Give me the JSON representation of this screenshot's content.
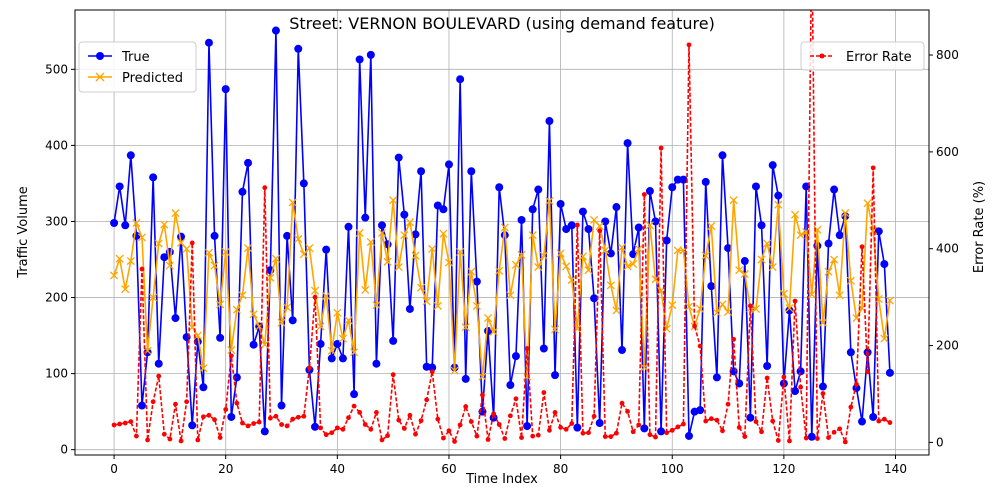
{
  "chart_data": {
    "type": "line",
    "title": "Street: VERNON BOULEVARD (using demand feature)",
    "xlabel": "Time Index",
    "ylabel_left": "Traffic Volume",
    "ylabel_right": "Error Rate (%)",
    "xlim": [
      -7,
      146
    ],
    "ylim_left": [
      -7,
      578
    ],
    "ylim_right": [
      -26,
      893
    ],
    "x_ticks": [
      0,
      20,
      40,
      60,
      80,
      100,
      120,
      140
    ],
    "y_ticks_left": [
      0,
      100,
      200,
      300,
      400,
      500
    ],
    "y_ticks_right": [
      0,
      200,
      400,
      600,
      800
    ],
    "grid": true,
    "legend_left": "upper left",
    "legend_right": "upper right",
    "colors": {
      "true": "#0000ff",
      "predicted": "#ffa500",
      "error": "#ff0000"
    },
    "series": [
      {
        "name": "True",
        "axis": "left",
        "marker": "circle",
        "values": [
          298,
          346,
          295,
          387,
          281,
          58,
          128,
          358,
          113,
          253,
          260,
          173,
          280,
          148,
          32,
          142,
          82,
          535,
          281,
          147,
          474,
          43,
          95,
          339,
          377,
          138,
          162,
          24,
          236,
          551,
          58,
          281,
          170,
          527,
          350,
          105,
          30,
          139,
          263,
          120,
          139,
          120,
          293,
          73,
          513,
          305,
          519,
          113,
          295,
          270,
          143,
          384,
          309,
          185,
          283,
          366,
          109,
          108,
          321,
          316,
          375,
          108,
          487,
          93,
          366,
          221,
          50,
          156,
          42,
          345,
          282,
          85,
          123,
          302,
          31,
          316,
          342,
          133,
          432,
          98,
          323,
          290,
          295,
          29,
          313,
          290,
          199,
          35,
          300,
          258,
          319,
          131,
          403,
          257,
          292,
          28,
          340,
          300,
          24,
          275,
          345,
          355,
          355,
          18,
          50,
          52,
          352,
          215,
          95,
          387,
          265,
          103,
          87,
          248,
          42,
          346,
          295,
          110,
          374,
          334,
          87,
          183,
          77,
          103,
          346,
          17,
          268,
          83,
          271,
          342,
          282,
          307,
          128,
          81,
          37,
          128,
          43,
          287,
          244,
          101
        ]
      },
      {
        "name": "Predicted",
        "axis": "left",
        "marker": "x",
        "values": [
          229,
          251,
          211,
          248,
          298,
          279,
          130,
          200,
          271,
          296,
          242,
          311,
          272,
          264,
          161,
          150,
          107,
          259,
          242,
          191,
          260,
          131,
          184,
          203,
          265,
          178,
          162,
          138,
          226,
          251,
          167,
          187,
          325,
          277,
          257,
          265,
          209,
          162,
          202,
          130,
          180,
          146,
          170,
          128,
          285,
          210,
          273,
          190,
          285,
          247,
          328,
          240,
          282,
          299,
          255,
          213,
          195,
          264,
          189,
          284,
          246,
          104,
          260,
          161,
          234,
          189,
          96,
          173,
          155,
          235,
          292,
          203,
          243,
          256,
          96,
          282,
          240,
          255,
          327,
          158,
          258,
          241,
          223,
          159,
          254,
          236,
          302,
          294,
          262,
          216,
          183,
          266,
          241,
          244,
          264,
          108,
          295,
          224,
          209,
          159,
          190,
          262,
          262,
          188,
          162,
          185,
          255,
          294,
          180,
          191,
          181,
          328,
          236,
          231,
          186,
          185,
          250,
          271,
          240,
          322,
          205,
          186,
          309,
          282,
          286,
          204,
          289,
          167,
          234,
          250,
          203,
          311,
          222,
          173,
          186,
          324,
          288,
          198,
          146,
          196
        ]
      },
      {
        "name": "Error Rate",
        "axis": "right",
        "marker": "dot",
        "style": "dashed",
        "values": [
          36,
          38,
          40,
          43,
          13,
          358,
          5,
          84,
          137,
          17,
          7,
          79,
          3,
          84,
          412,
          5,
          53,
          56,
          47,
          10,
          68,
          179,
          81,
          40,
          34,
          39,
          42,
          526,
          50,
          54,
          37,
          34,
          48,
          52,
          54,
          154,
          300,
          30,
          16,
          20,
          30,
          27,
          51,
          75,
          62,
          37,
          27,
          62,
          5,
          14,
          140,
          46,
          29,
          56,
          17,
          45,
          88,
          146,
          48,
          9,
          24,
          2,
          36,
          74,
          43,
          13,
          98,
          6,
          59,
          37,
          8,
          55,
          90,
          10,
          194,
          13,
          15,
          103,
          25,
          62,
          31,
          27,
          39,
          449,
          19,
          20,
          54,
          437,
          12,
          12,
          19,
          81,
          64,
          22,
          36,
          512,
          16,
          11,
          608,
          20,
          25,
          32,
          38,
          821,
          240,
          199,
          44,
          49,
          46,
          24,
          79,
          213,
          31,
          12,
          282,
          43,
          22,
          133,
          44,
          4,
          135,
          3,
          292,
          114,
          9,
          1044,
          8,
          101,
          10,
          21,
          28,
          1,
          73,
          120,
          404,
          146,
          567,
          44,
          48,
          41
        ]
      }
    ]
  }
}
